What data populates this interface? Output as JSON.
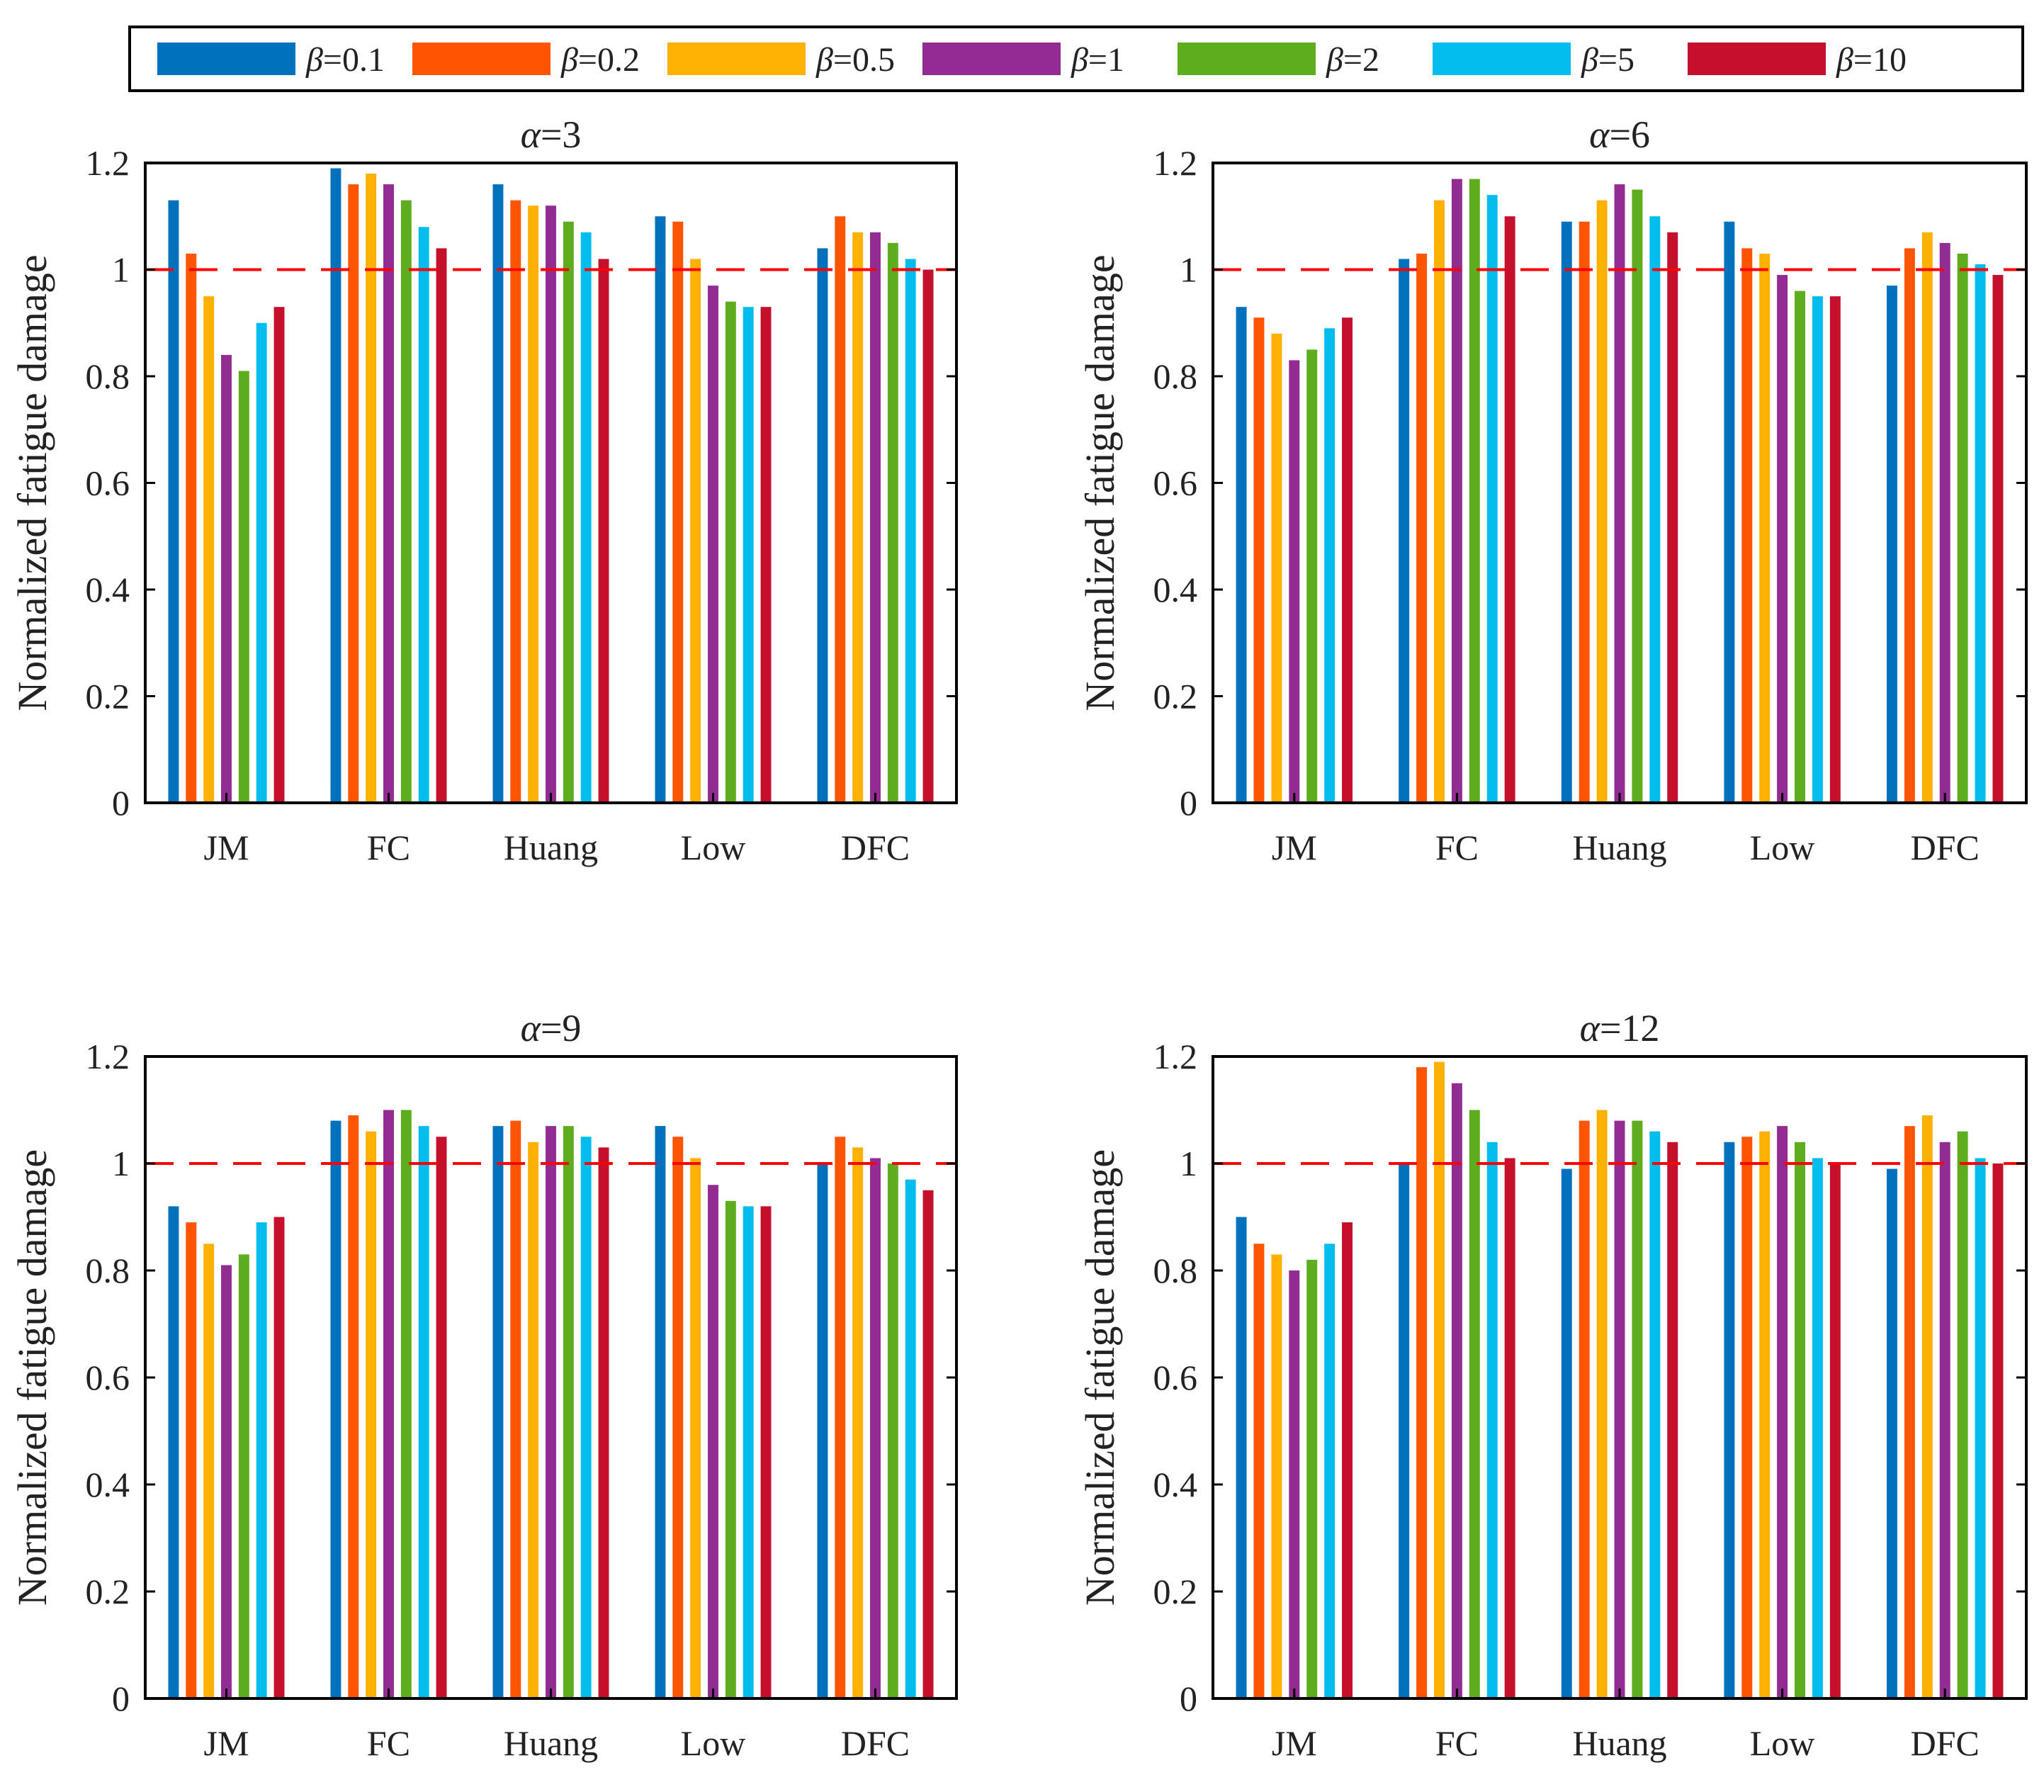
{
  "legend": {
    "items": [
      {
        "symbol": "β",
        "label": "=0.1",
        "color": "#0072BD"
      },
      {
        "symbol": "β",
        "label": "=0.2",
        "color": "#FF5400"
      },
      {
        "symbol": "β",
        "label": "=0.5",
        "color": "#FFB000"
      },
      {
        "symbol": "β",
        "label": "=1",
        "color": "#922B92"
      },
      {
        "symbol": "β",
        "label": "=2",
        "color": "#5DAD1E"
      },
      {
        "symbol": "β",
        "label": "=5",
        "color": "#00BDEE"
      },
      {
        "symbol": "β",
        "label": "=10",
        "color": "#C5102C"
      }
    ]
  },
  "reference_line": {
    "value": 1,
    "color": "#FF0000"
  },
  "chart_data": [
    {
      "type": "bar",
      "title_symbol": "α",
      "title_value": "=3",
      "ylabel": "Normalized fatigue damage",
      "xlabel": "",
      "ylim": [
        0,
        1.2
      ],
      "yticks": [
        "0",
        "0.2",
        "0.4",
        "0.6",
        "0.8",
        "1",
        "1.2"
      ],
      "grid": false,
      "categories": [
        "JM",
        "FC",
        "Huang",
        "Low",
        "DFC"
      ],
      "series": [
        {
          "name": "β=0.1",
          "values": [
            1.13,
            1.19,
            1.16,
            1.1,
            1.04
          ]
        },
        {
          "name": "β=0.2",
          "values": [
            1.03,
            1.16,
            1.13,
            1.09,
            1.1
          ]
        },
        {
          "name": "β=0.5",
          "values": [
            0.95,
            1.18,
            1.12,
            1.02,
            1.07
          ]
        },
        {
          "name": "β=1",
          "values": [
            0.84,
            1.16,
            1.12,
            0.97,
            1.07
          ]
        },
        {
          "name": "β=2",
          "values": [
            0.81,
            1.13,
            1.09,
            0.94,
            1.05
          ]
        },
        {
          "name": "β=5",
          "values": [
            0.9,
            1.08,
            1.07,
            0.93,
            1.02
          ]
        },
        {
          "name": "β=10",
          "values": [
            0.93,
            1.04,
            1.02,
            0.93,
            1.0
          ]
        }
      ]
    },
    {
      "type": "bar",
      "title_symbol": "α",
      "title_value": "=6",
      "ylabel": "Normalized fatigue damage",
      "xlabel": "",
      "ylim": [
        0,
        1.2
      ],
      "yticks": [
        "0",
        "0.2",
        "0.4",
        "0.6",
        "0.8",
        "1",
        "1.2"
      ],
      "grid": false,
      "categories": [
        "JM",
        "FC",
        "Huang",
        "Low",
        "DFC"
      ],
      "series": [
        {
          "name": "β=0.1",
          "values": [
            0.93,
            1.02,
            1.09,
            1.09,
            0.97
          ]
        },
        {
          "name": "β=0.2",
          "values": [
            0.91,
            1.03,
            1.09,
            1.04,
            1.04
          ]
        },
        {
          "name": "β=0.5",
          "values": [
            0.88,
            1.13,
            1.13,
            1.03,
            1.07
          ]
        },
        {
          "name": "β=1",
          "values": [
            0.83,
            1.17,
            1.16,
            0.99,
            1.05
          ]
        },
        {
          "name": "β=2",
          "values": [
            0.85,
            1.17,
            1.15,
            0.96,
            1.03
          ]
        },
        {
          "name": "β=5",
          "values": [
            0.89,
            1.14,
            1.1,
            0.95,
            1.01
          ]
        },
        {
          "name": "β=10",
          "values": [
            0.91,
            1.1,
            1.07,
            0.95,
            0.99
          ]
        }
      ]
    },
    {
      "type": "bar",
      "title_symbol": "α",
      "title_value": "=9",
      "ylabel": "Normalized fatigue damage",
      "xlabel": "",
      "ylim": [
        0,
        1.2
      ],
      "yticks": [
        "0",
        "0.2",
        "0.4",
        "0.6",
        "0.8",
        "1",
        "1.2"
      ],
      "grid": false,
      "categories": [
        "JM",
        "FC",
        "Huang",
        "Low",
        "DFC"
      ],
      "series": [
        {
          "name": "β=0.1",
          "values": [
            0.92,
            1.08,
            1.07,
            1.07,
            1.0
          ]
        },
        {
          "name": "β=0.2",
          "values": [
            0.89,
            1.09,
            1.08,
            1.05,
            1.05
          ]
        },
        {
          "name": "β=0.5",
          "values": [
            0.85,
            1.06,
            1.04,
            1.01,
            1.03
          ]
        },
        {
          "name": "β=1",
          "values": [
            0.81,
            1.1,
            1.07,
            0.96,
            1.01
          ]
        },
        {
          "name": "β=2",
          "values": [
            0.83,
            1.1,
            1.07,
            0.93,
            1.0
          ]
        },
        {
          "name": "β=5",
          "values": [
            0.89,
            1.07,
            1.05,
            0.92,
            0.97
          ]
        },
        {
          "name": "β=10",
          "values": [
            0.9,
            1.05,
            1.03,
            0.92,
            0.95
          ]
        }
      ]
    },
    {
      "type": "bar",
      "title_symbol": "α",
      "title_value": "=12",
      "ylabel": "Normalized fatigue damage",
      "xlabel": "",
      "ylim": [
        0,
        1.2
      ],
      "yticks": [
        "0",
        "0.2",
        "0.4",
        "0.6",
        "0.8",
        "1",
        "1.2"
      ],
      "grid": false,
      "categories": [
        "JM",
        "FC",
        "Huang",
        "Low",
        "DFC"
      ],
      "series": [
        {
          "name": "β=0.1",
          "values": [
            0.9,
            1.0,
            0.99,
            1.04,
            0.99
          ]
        },
        {
          "name": "β=0.2",
          "values": [
            0.85,
            1.18,
            1.08,
            1.05,
            1.07
          ]
        },
        {
          "name": "β=0.5",
          "values": [
            0.83,
            1.19,
            1.1,
            1.06,
            1.09
          ]
        },
        {
          "name": "β=1",
          "values": [
            0.8,
            1.15,
            1.08,
            1.07,
            1.04
          ]
        },
        {
          "name": "β=2",
          "values": [
            0.82,
            1.1,
            1.08,
            1.04,
            1.06
          ]
        },
        {
          "name": "β=5",
          "values": [
            0.85,
            1.04,
            1.06,
            1.01,
            1.01
          ]
        },
        {
          "name": "β=10",
          "values": [
            0.89,
            1.01,
            1.04,
            1.0,
            1.0
          ]
        }
      ]
    }
  ]
}
